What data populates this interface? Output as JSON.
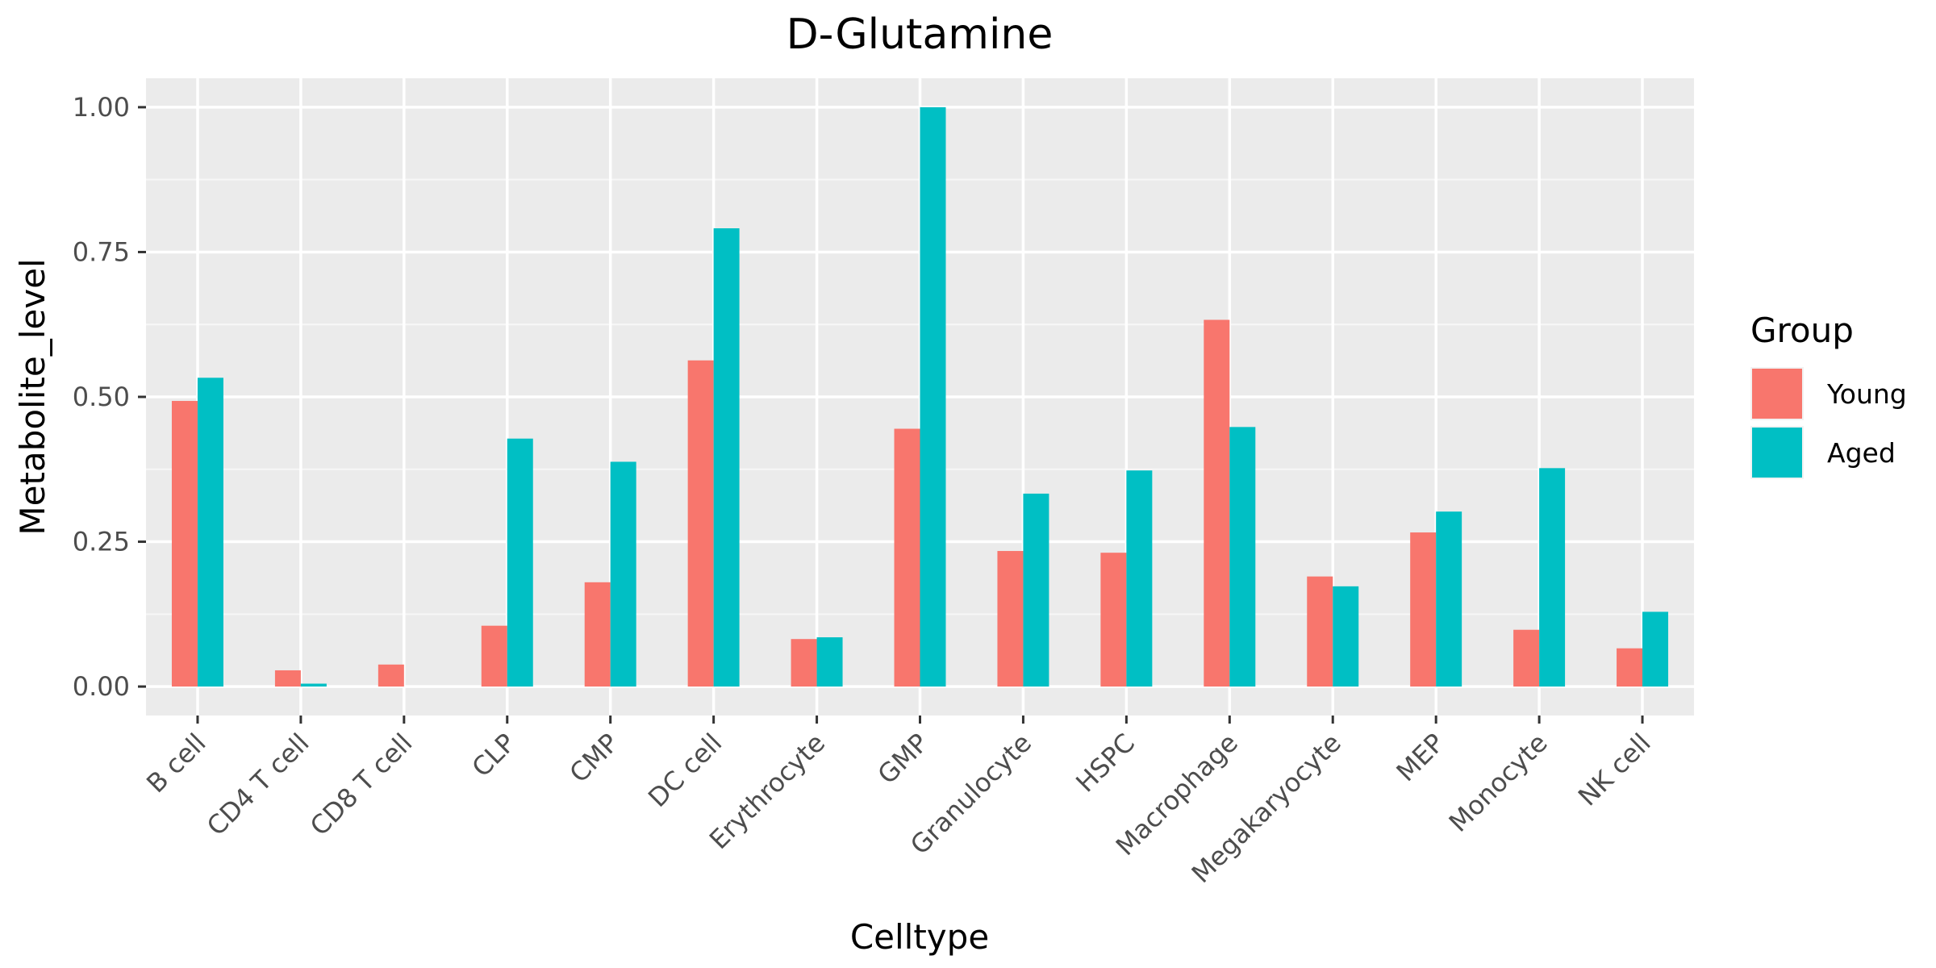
{
  "chart_data": {
    "type": "bar",
    "title": "D-Glutamine",
    "xlabel": "Celltype",
    "ylabel": "Metabolite_level",
    "ylim": [
      -0.05,
      1.05
    ],
    "yticks": [
      0,
      0.25,
      0.5,
      0.75,
      1.0
    ],
    "ytick_labels": [
      "0.00",
      "0.25",
      "0.50",
      "0.75",
      "1.00"
    ],
    "categories": [
      "B cell",
      "CD4 T cell",
      "CD8 T cell",
      "CLP",
      "CMP",
      "DC cell",
      "Erythrocyte",
      "GMP",
      "Granulocyte",
      "HSPC",
      "Macrophage",
      "Megakaryocyte",
      "MEP",
      "Monocyte",
      "NK cell"
    ],
    "series": [
      {
        "name": "Young",
        "color": "#F8766D",
        "values": [
          0.493,
          0.028,
          0.038,
          0.105,
          0.18,
          0.563,
          0.082,
          0.445,
          0.234,
          0.231,
          0.633,
          0.19,
          0.266,
          0.098,
          0.066
        ]
      },
      {
        "name": "Aged",
        "color": "#00BFC4",
        "values": [
          0.533,
          0.005,
          0.0,
          0.428,
          0.388,
          0.791,
          0.085,
          1.0,
          0.333,
          0.373,
          0.448,
          0.173,
          0.302,
          0.377,
          0.129
        ]
      }
    ],
    "legend": {
      "title": "Group",
      "position": "right"
    },
    "grid": true,
    "panel_background": "#EBEBEB"
  }
}
